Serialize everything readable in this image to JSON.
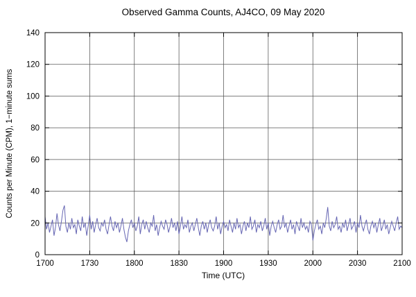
{
  "chart_data": {
    "type": "line",
    "title": "Observed Gamma Counts, AJ4CO, 09 May 2020",
    "xlabel": "Time (UTC)",
    "ylabel": "Counts per Minute (CPM), 1−minute sums",
    "xlim": [
      0,
      240
    ],
    "ylim": [
      0,
      140
    ],
    "x_tick_minutes": [
      0,
      30,
      60,
      90,
      120,
      150,
      180,
      210,
      240
    ],
    "x_tick_labels": [
      "1700",
      "1730",
      "1800",
      "1830",
      "1900",
      "1930",
      "2000",
      "2030",
      "2100"
    ],
    "y_ticks": [
      0,
      20,
      40,
      60,
      80,
      100,
      120,
      140
    ],
    "grid": true,
    "legend": "none",
    "line_color": "#6666b3",
    "grid_color": "#555555",
    "frame_color": "#000000",
    "values": [
      24,
      16,
      20,
      14,
      18,
      22,
      12,
      17,
      26,
      19,
      15,
      21,
      28,
      31,
      18,
      14,
      20,
      16,
      23,
      17,
      19,
      13,
      22,
      18,
      15,
      24,
      17,
      20,
      12,
      18,
      25,
      16,
      21,
      14,
      19,
      23,
      17,
      15,
      20,
      18,
      22,
      16,
      13,
      19,
      24,
      18,
      15,
      21,
      17,
      20,
      14,
      18,
      23,
      16,
      11,
      8,
      15,
      19,
      22,
      17,
      20,
      15,
      18,
      24,
      13,
      19,
      22,
      16,
      21,
      17,
      14,
      20,
      18,
      25,
      15,
      19,
      12,
      17,
      21,
      18,
      16,
      22,
      19,
      14,
      18,
      23,
      17,
      20,
      15,
      21,
      13,
      18,
      24,
      16,
      19,
      17,
      22,
      14,
      18,
      20,
      15,
      19,
      23,
      17,
      12,
      18,
      21,
      16,
      20,
      14,
      19,
      22,
      17,
      15,
      18,
      24,
      16,
      20,
      13,
      18,
      21,
      17,
      19,
      15,
      22,
      18,
      14,
      20,
      16,
      23,
      17,
      19,
      13,
      18,
      21,
      15,
      20,
      17,
      24,
      16,
      18,
      22,
      14,
      19,
      17,
      21,
      15,
      18,
      23,
      16,
      20,
      12,
      18,
      21,
      17,
      14,
      19,
      22,
      16,
      18,
      25,
      17,
      20,
      14,
      18,
      22,
      16,
      19,
      13,
      21,
      18,
      15,
      23,
      17,
      20,
      16,
      18,
      14,
      21,
      19,
      9,
      15,
      19,
      22,
      16,
      18,
      13,
      20,
      17,
      23,
      30,
      18,
      15,
      21,
      17,
      19,
      24,
      16,
      18,
      14,
      20,
      17,
      22,
      15,
      19,
      23,
      16,
      18,
      21,
      14,
      20,
      17,
      25,
      18,
      15,
      19,
      22,
      16,
      13,
      18,
      21,
      17,
      20,
      14,
      19,
      23,
      15,
      18,
      22,
      16,
      19,
      13,
      17,
      21,
      18,
      15,
      20,
      24,
      16,
      18,
      17
    ]
  }
}
